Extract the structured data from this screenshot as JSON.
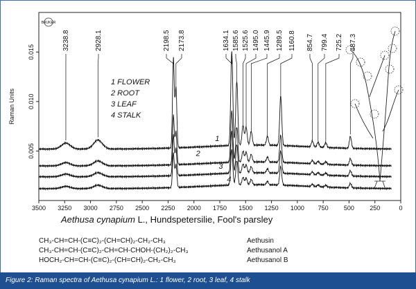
{
  "chart_data": {
    "type": "line",
    "title": "",
    "logo_text": "BRUKER",
    "xlabel": "",
    "ylabel": "Raman Units",
    "x_reversed": true,
    "xlim": [
      3500,
      0
    ],
    "ylim": [
      0.0,
      0.019
    ],
    "x_ticks": [
      3500,
      3250,
      3000,
      2750,
      2500,
      2250,
      2000,
      1750,
      1500,
      1250,
      1000,
      750,
      500,
      250,
      0
    ],
    "y_ticks": [
      0.005,
      0.01,
      0.015
    ],
    "y_tick_labels": [
      "0.005",
      "0.010",
      "0.015"
    ],
    "legend": [
      "1  FLOWER",
      "2  ROOT",
      "3  LEAF",
      "4  STALK"
    ],
    "peak_labels": [
      "3238.8",
      "2928.1",
      "2198.5",
      "2173.8",
      "1634.1",
      "1585.6",
      "1525.6",
      "1495.0",
      "1445.9",
      "1289.5",
      "1160.8",
      "854.7",
      "799.4",
      "725.2",
      "487.3"
    ],
    "peaks": [
      3238.8,
      2928.1,
      2198.5,
      2173.8,
      1634.1,
      1585.6,
      1525.6,
      1495.0,
      1445.9,
      1289.5,
      1160.8,
      854.7,
      799.4,
      725.2,
      487.3
    ],
    "series_labels": [
      "1",
      "2",
      "3",
      "4"
    ],
    "series": [
      {
        "name": "1",
        "baseline": 0.0052,
        "scale": 1.0
      },
      {
        "name": "2",
        "baseline": 0.0035,
        "scale": 0.55
      },
      {
        "name": "3",
        "baseline": 0.0024,
        "scale": 0.45
      },
      {
        "name": "4",
        "baseline": 0.0012,
        "scale": 0.38
      }
    ],
    "peak_heights": [
      0.0006,
      0.0009,
      0.009,
      0.006,
      0.0095,
      0.0065,
      0.002,
      0.0018,
      0.0014,
      0.0009,
      0.005,
      0.0006,
      0.0005,
      0.0005,
      0.0012
    ],
    "plant_name_italic": "Aethusa cynapium",
    "plant_name_rest": " L., Hundspetersilie, Fool's parsley"
  },
  "formulas": [
    {
      "formula": "CH₃-CH=CH-(C≡C)₂-(CH=CH)₂-CH₂-CH₃",
      "name": "Aethusin"
    },
    {
      "formula": "CH₃-CH=CH-(C≡C)₂-CH=CH-CHOH-(CH₂)₂-CH₃",
      "name": "Aethusanol A"
    },
    {
      "formula": "HOCH₂-CH=CH-(C≡C)₂-(CH=CH)₂-CH₂-CH₃",
      "name": "Aethusanol B"
    }
  ],
  "caption": "Figure 2: Raman spectra of Aethusa cynapium L.: 1 flower, 2 root, 3 leaf, 4 stalk",
  "colors": {
    "caption_bg": "#1d4f91",
    "frame": "#3d6ea8",
    "ink": "#111111"
  }
}
